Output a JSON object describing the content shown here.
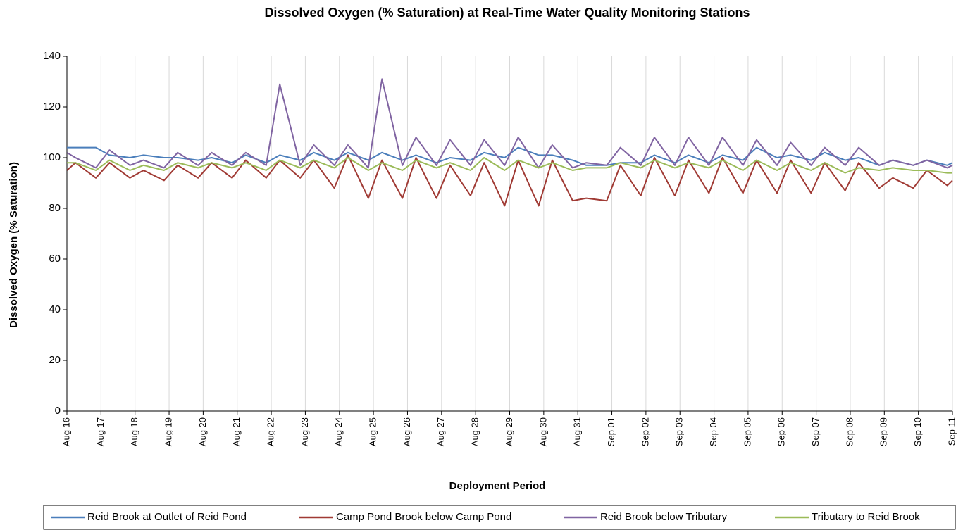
{
  "chart_data": {
    "type": "line",
    "title": "Dissolved Oxygen (% Saturation) at Real-Time Water Quality Monitoring Stations",
    "x_label": "Deployment Period",
    "y_label": "Dissolved Oxygen (% Saturation)",
    "x": [
      0,
      0.25,
      0.85,
      1.25,
      1.85,
      2.25,
      2.85,
      3.25,
      3.85,
      4.25,
      4.85,
      5.25,
      5.85,
      6.25,
      6.85,
      7.25,
      7.85,
      8.25,
      8.85,
      9.25,
      9.85,
      10.25,
      10.85,
      11.25,
      11.85,
      12.25,
      12.85,
      13.25,
      13.85,
      14.25,
      14.85,
      15.25,
      15.85,
      16.25,
      16.85,
      17.25,
      17.85,
      18.25,
      18.85,
      19.25,
      19.85,
      20.25,
      20.85,
      21.25,
      21.85,
      22.25,
      22.85,
      23.25,
      23.85,
      24.25,
      24.85,
      25.25,
      25.85,
      26
    ],
    "xlim": [
      0,
      26
    ],
    "xticks": [
      {
        "value": 0,
        "label": "Aug 16"
      },
      {
        "value": 1,
        "label": "Aug 17"
      },
      {
        "value": 2,
        "label": "Aug 18"
      },
      {
        "value": 3,
        "label": "Aug 19"
      },
      {
        "value": 4,
        "label": "Aug 20"
      },
      {
        "value": 5,
        "label": "Aug 21"
      },
      {
        "value": 6,
        "label": "Aug 22"
      },
      {
        "value": 7,
        "label": "Aug 23"
      },
      {
        "value": 8,
        "label": "Aug 24"
      },
      {
        "value": 9,
        "label": "Aug 25"
      },
      {
        "value": 10,
        "label": "Aug 26"
      },
      {
        "value": 11,
        "label": "Aug 27"
      },
      {
        "value": 12,
        "label": "Aug 28"
      },
      {
        "value": 13,
        "label": "Aug 29"
      },
      {
        "value": 14,
        "label": "Aug 30"
      },
      {
        "value": 15,
        "label": "Aug 31"
      },
      {
        "value": 16,
        "label": "Sep 01"
      },
      {
        "value": 17,
        "label": "Sep 02"
      },
      {
        "value": 18,
        "label": "Sep 03"
      },
      {
        "value": 19,
        "label": "Sep 04"
      },
      {
        "value": 20,
        "label": "Sep 05"
      },
      {
        "value": 21,
        "label": "Sep 06"
      },
      {
        "value": 22,
        "label": "Sep 07"
      },
      {
        "value": 23,
        "label": "Sep 08"
      },
      {
        "value": 24,
        "label": "Sep 09"
      },
      {
        "value": 25,
        "label": "Sep 10"
      },
      {
        "value": 26,
        "label": "Sep 11"
      }
    ],
    "ylim": [
      0,
      140
    ],
    "yticks": [
      0,
      20,
      40,
      60,
      80,
      100,
      120,
      140
    ],
    "grid": "x",
    "legend": "bottom",
    "series": [
      {
        "name": "Reid Brook at Outlet of Reid Pond",
        "color": "#4a7ebb",
        "values": [
          104,
          104,
          104,
          101,
          100,
          101,
          100,
          100,
          99,
          100,
          98,
          101,
          98,
          101,
          99,
          102,
          99,
          102,
          99,
          102,
          99,
          101,
          98,
          100,
          99,
          102,
          100,
          104,
          101,
          101,
          99,
          97,
          97,
          98,
          98,
          101,
          98,
          101,
          98,
          101,
          99,
          104,
          100,
          101,
          99,
          102,
          99,
          100,
          97,
          99,
          97,
          99,
          97,
          98
        ]
      },
      {
        "name": "Camp Pond Brook below Camp Pond",
        "color": "#a03a34",
        "values": [
          95,
          98,
          92,
          98,
          92,
          95,
          91,
          97,
          92,
          98,
          92,
          99,
          92,
          99,
          92,
          99,
          88,
          101,
          84,
          99,
          84,
          100,
          84,
          97,
          85,
          98,
          81,
          99,
          81,
          99,
          83,
          84,
          83,
          97,
          85,
          100,
          85,
          99,
          86,
          100,
          86,
          99,
          86,
          99,
          86,
          98,
          87,
          98,
          88,
          92,
          88,
          95,
          89,
          91
        ]
      },
      {
        "name": "Reid Brook below Tributary",
        "color": "#8064a2",
        "values": [
          102,
          100,
          96,
          103,
          97,
          99,
          96,
          102,
          97,
          102,
          97,
          102,
          97,
          129,
          97,
          105,
          97,
          105,
          96,
          131,
          97,
          108,
          97,
          107,
          97,
          107,
          97,
          108,
          96,
          105,
          96,
          98,
          97,
          104,
          97,
          108,
          97,
          108,
          97,
          108,
          97,
          107,
          97,
          106,
          97,
          104,
          97,
          104,
          97,
          99,
          97,
          99,
          96,
          97
        ]
      },
      {
        "name": "Tributary to Reid Brook",
        "color": "#9bbb59",
        "values": [
          98,
          98,
          95,
          99,
          95,
          97,
          95,
          98,
          96,
          98,
          96,
          98,
          95,
          99,
          96,
          99,
          96,
          100,
          95,
          98,
          95,
          99,
          96,
          98,
          95,
          100,
          95,
          99,
          96,
          98,
          95,
          96,
          96,
          98,
          96,
          99,
          96,
          98,
          96,
          99,
          95,
          99,
          95,
          98,
          95,
          98,
          94,
          96,
          95,
          96,
          95,
          95,
          94,
          94
        ]
      }
    ]
  }
}
